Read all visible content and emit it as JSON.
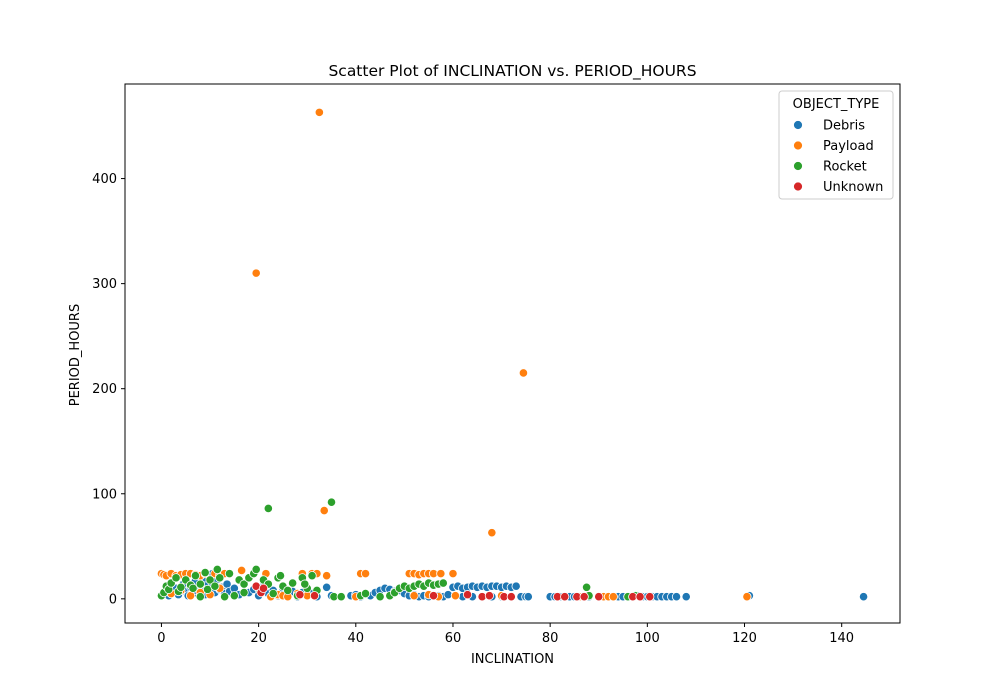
{
  "chart_data": {
    "type": "scatter",
    "title": "Scatter Plot of INCLINATION vs. PERIOD_HOURS",
    "xlabel": "INCLINATION",
    "ylabel": "PERIOD_HOURS",
    "xlim": [
      -7.5,
      152
    ],
    "ylim": [
      -23,
      490
    ],
    "x_ticks": [
      0,
      20,
      40,
      60,
      80,
      100,
      120,
      140
    ],
    "y_ticks": [
      0,
      100,
      200,
      300,
      400
    ],
    "grid": false,
    "legend": {
      "title": "OBJECT_TYPE",
      "placement": "top-right"
    },
    "colors": {
      "Debris": "#1f77b4",
      "Payload": "#ff7f0e",
      "Rocket": "#2ca02c",
      "Unknown": "#d62728"
    },
    "series": [
      {
        "name": "Debris",
        "points": [
          [
            0.5,
            5
          ],
          [
            1,
            8
          ],
          [
            1.5,
            3
          ],
          [
            2,
            12
          ],
          [
            2.5,
            6
          ],
          [
            3,
            10
          ],
          [
            3.5,
            4
          ],
          [
            4,
            9
          ],
          [
            4.5,
            14
          ],
          [
            5,
            7
          ],
          [
            5.5,
            3
          ],
          [
            6,
            11
          ],
          [
            6.5,
            5
          ],
          [
            7,
            8
          ],
          [
            7.5,
            13
          ],
          [
            8,
            6
          ],
          [
            8.5,
            10
          ],
          [
            9,
            4
          ],
          [
            9.5,
            15
          ],
          [
            10,
            8
          ],
          [
            10.5,
            12
          ],
          [
            11,
            6
          ],
          [
            11.5,
            18
          ],
          [
            12,
            9
          ],
          [
            12.5,
            11
          ],
          [
            13,
            5
          ],
          [
            13.5,
            14
          ],
          [
            14,
            7
          ],
          [
            15,
            10
          ],
          [
            16,
            4
          ],
          [
            10.5,
            24
          ],
          [
            11,
            16
          ],
          [
            9,
            20
          ],
          [
            7,
            17
          ],
          [
            5,
            19
          ],
          [
            18,
            6
          ],
          [
            19,
            9
          ],
          [
            20,
            3
          ],
          [
            21,
            12
          ],
          [
            22,
            5
          ],
          [
            23,
            8
          ],
          [
            24,
            3
          ],
          [
            25,
            10
          ],
          [
            26,
            4
          ],
          [
            27,
            7
          ],
          [
            28,
            2
          ],
          [
            29,
            6
          ],
          [
            30,
            3
          ],
          [
            31,
            5
          ],
          [
            32,
            2
          ],
          [
            34,
            11
          ],
          [
            35,
            3
          ],
          [
            39,
            3
          ],
          [
            40,
            4
          ],
          [
            41,
            2
          ],
          [
            42,
            5
          ],
          [
            43,
            3
          ],
          [
            44,
            6
          ],
          [
            45,
            8
          ],
          [
            46,
            10
          ],
          [
            47,
            9
          ],
          [
            48,
            7
          ],
          [
            49,
            8
          ],
          [
            50,
            5
          ],
          [
            51,
            3
          ],
          [
            52,
            4
          ],
          [
            53,
            2
          ],
          [
            54,
            3
          ],
          [
            55,
            2
          ],
          [
            57,
            3
          ],
          [
            58,
            2
          ],
          [
            59,
            4
          ],
          [
            60,
            11
          ],
          [
            61,
            12
          ],
          [
            62,
            10
          ],
          [
            63,
            11
          ],
          [
            64,
            12
          ],
          [
            65,
            11
          ],
          [
            66,
            12
          ],
          [
            67,
            11
          ],
          [
            68,
            12
          ],
          [
            69,
            12
          ],
          [
            70,
            11
          ],
          [
            71,
            12
          ],
          [
            72,
            11
          ],
          [
            73,
            12
          ],
          [
            74,
            2
          ],
          [
            75,
            2
          ],
          [
            75.5,
            2
          ],
          [
            62,
            2
          ],
          [
            64,
            2
          ],
          [
            66,
            2
          ],
          [
            68,
            2
          ],
          [
            70,
            2
          ],
          [
            72,
            2
          ],
          [
            80,
            2
          ],
          [
            81,
            2
          ],
          [
            82,
            2
          ],
          [
            83,
            2
          ],
          [
            84,
            2
          ],
          [
            85,
            2
          ],
          [
            86,
            2
          ],
          [
            88,
            2
          ],
          [
            90,
            2
          ],
          [
            91,
            2
          ],
          [
            93,
            2
          ],
          [
            94,
            2
          ],
          [
            95,
            2
          ],
          [
            96,
            2
          ],
          [
            97,
            2
          ],
          [
            98,
            3
          ],
          [
            99,
            2
          ],
          [
            100,
            2
          ],
          [
            101,
            2
          ],
          [
            102,
            2
          ],
          [
            103,
            2
          ],
          [
            104,
            2
          ],
          [
            105,
            2
          ],
          [
            106,
            2
          ],
          [
            108,
            2
          ],
          [
            121,
            3
          ],
          [
            144.5,
            2
          ]
        ]
      },
      {
        "name": "Payload",
        "points": [
          [
            0,
            24
          ],
          [
            0.5,
            23
          ],
          [
            1,
            22
          ],
          [
            2,
            24
          ],
          [
            3,
            22
          ],
          [
            4,
            23
          ],
          [
            5,
            24
          ],
          [
            6,
            24
          ],
          [
            7,
            23
          ],
          [
            8,
            22
          ],
          [
            9,
            24
          ],
          [
            11,
            24
          ],
          [
            12,
            22
          ],
          [
            13,
            24
          ],
          [
            16.5,
            27
          ],
          [
            2,
            5
          ],
          [
            4,
            8
          ],
          [
            6,
            3
          ],
          [
            8,
            6
          ],
          [
            10,
            4
          ],
          [
            12,
            10
          ],
          [
            19.5,
            310
          ],
          [
            21.5,
            24
          ],
          [
            22.5,
            2
          ],
          [
            24,
            4
          ],
          [
            25,
            3
          ],
          [
            26,
            2
          ],
          [
            28,
            5
          ],
          [
            29,
            24
          ],
          [
            30,
            3
          ],
          [
            31,
            24
          ],
          [
            32,
            24
          ],
          [
            32.5,
            463
          ],
          [
            33.5,
            84
          ],
          [
            34,
            22
          ],
          [
            40,
            2
          ],
          [
            41,
            24
          ],
          [
            42,
            24
          ],
          [
            51,
            24
          ],
          [
            52,
            24
          ],
          [
            53,
            23
          ],
          [
            54,
            24
          ],
          [
            55,
            24
          ],
          [
            56,
            24
          ],
          [
            57.5,
            24
          ],
          [
            60,
            24
          ],
          [
            52,
            3
          ],
          [
            55,
            4
          ],
          [
            57,
            2
          ],
          [
            60.5,
            3
          ],
          [
            68,
            63
          ],
          [
            70,
            3
          ],
          [
            74.5,
            215
          ],
          [
            86,
            2
          ],
          [
            87,
            2
          ],
          [
            91,
            2
          ],
          [
            92,
            2
          ],
          [
            93,
            2
          ],
          [
            97,
            2
          ],
          [
            120.5,
            2
          ]
        ]
      },
      {
        "name": "Rocket",
        "points": [
          [
            0,
            3
          ],
          [
            0.5,
            6
          ],
          [
            1,
            12
          ],
          [
            1.5,
            9
          ],
          [
            2,
            15
          ],
          [
            3,
            20
          ],
          [
            3.5,
            7
          ],
          [
            4,
            11
          ],
          [
            5,
            18
          ],
          [
            6,
            13
          ],
          [
            6.5,
            10
          ],
          [
            7,
            22
          ],
          [
            8,
            14
          ],
          [
            9,
            25
          ],
          [
            9.5,
            9
          ],
          [
            10,
            18
          ],
          [
            11,
            12
          ],
          [
            11.5,
            28
          ],
          [
            12,
            20
          ],
          [
            13,
            2
          ],
          [
            14,
            24
          ],
          [
            15,
            3
          ],
          [
            16,
            18
          ],
          [
            17,
            14
          ],
          [
            18,
            20
          ],
          [
            19,
            24
          ],
          [
            19.5,
            28
          ],
          [
            20,
            10
          ],
          [
            21,
            18
          ],
          [
            22,
            14
          ],
          [
            23,
            5
          ],
          [
            24,
            20
          ],
          [
            25,
            12
          ],
          [
            26,
            8
          ],
          [
            27,
            15
          ],
          [
            28,
            3
          ],
          [
            29,
            20
          ],
          [
            30,
            10
          ],
          [
            31,
            22
          ],
          [
            32,
            8
          ],
          [
            8,
            2
          ],
          [
            17,
            6
          ],
          [
            22,
            86
          ],
          [
            24.5,
            22
          ],
          [
            29.5,
            14
          ],
          [
            35,
            92
          ],
          [
            35.5,
            2
          ],
          [
            37,
            2
          ],
          [
            41,
            3
          ],
          [
            42,
            5
          ],
          [
            45,
            2
          ],
          [
            47,
            3
          ],
          [
            48,
            6
          ],
          [
            49,
            10
          ],
          [
            50,
            12
          ],
          [
            51,
            10
          ],
          [
            52,
            12
          ],
          [
            53,
            14
          ],
          [
            54,
            12
          ],
          [
            55,
            15
          ],
          [
            56,
            13
          ],
          [
            57,
            14
          ],
          [
            58,
            15
          ],
          [
            87.5,
            11
          ],
          [
            88,
            3
          ],
          [
            96,
            2
          ],
          [
            97.5,
            3
          ]
        ]
      },
      {
        "name": "Unknown",
        "points": [
          [
            19.5,
            12
          ],
          [
            20.5,
            6
          ],
          [
            21,
            10
          ],
          [
            28.5,
            4
          ],
          [
            31.5,
            3
          ],
          [
            56,
            3
          ],
          [
            63,
            4
          ],
          [
            66,
            2
          ],
          [
            67.5,
            3
          ],
          [
            70.5,
            2
          ],
          [
            72,
            2
          ],
          [
            81.5,
            2
          ],
          [
            83,
            2
          ],
          [
            85.5,
            2
          ],
          [
            87,
            2
          ],
          [
            90,
            2
          ],
          [
            97,
            2
          ],
          [
            98.5,
            2
          ],
          [
            100.5,
            2
          ]
        ]
      }
    ]
  }
}
